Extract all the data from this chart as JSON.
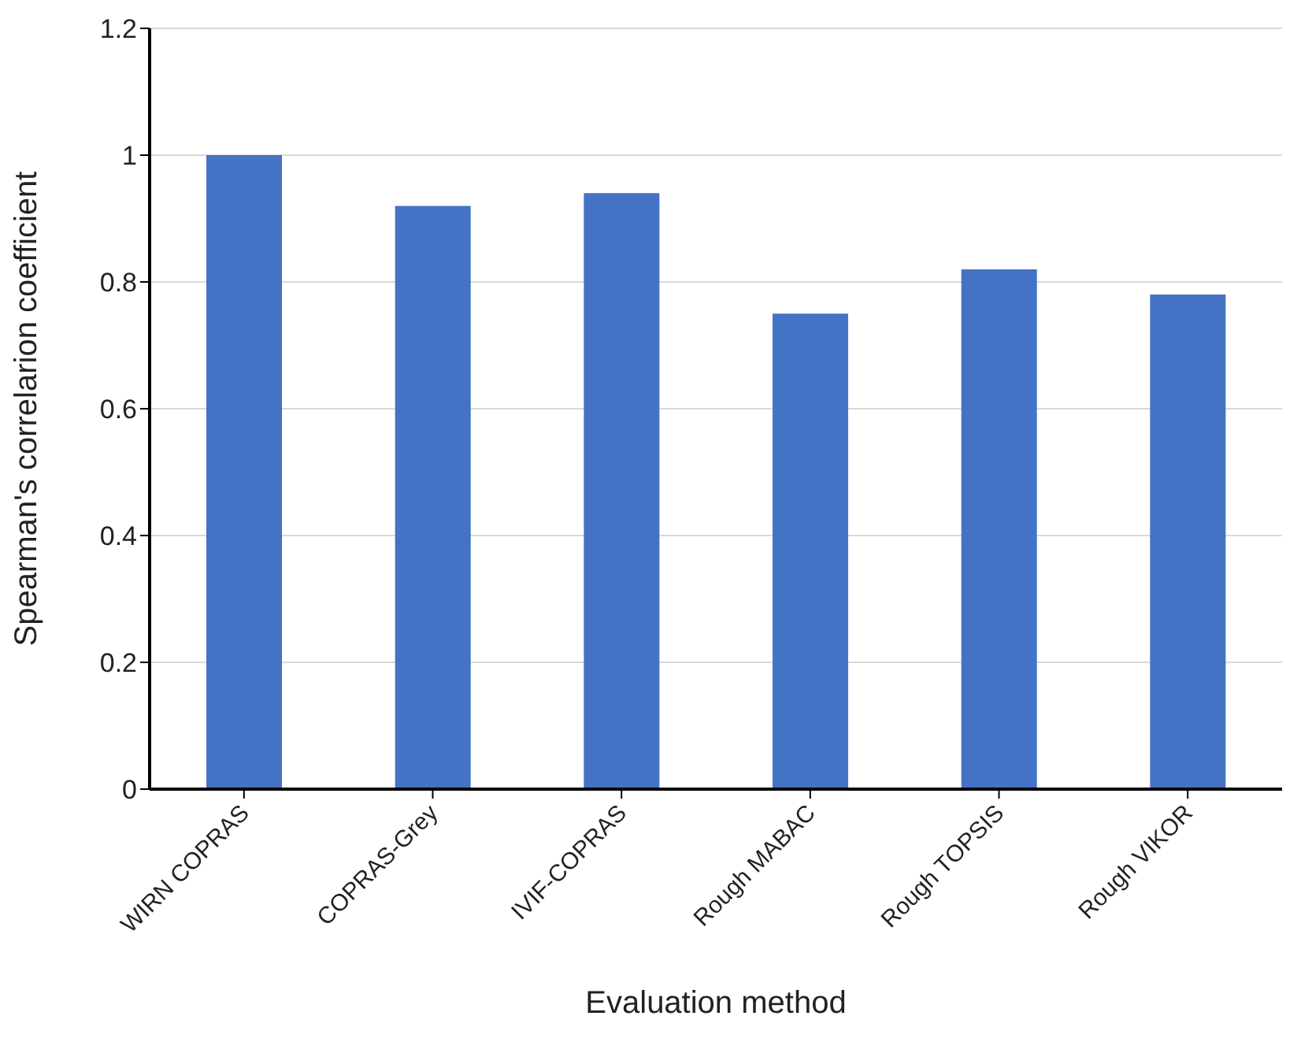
{
  "chart_data": {
    "type": "bar",
    "xlabel": "Evaluation method",
    "ylabel": "Spearman's correlarion coefficient",
    "categories": [
      "WIRN COPRAS",
      "COPRAS-Grey",
      "IVIF-COPRAS",
      "Rough MABAC",
      "Rough TOPSIS",
      "Rough VIKOR"
    ],
    "values": [
      1,
      0.92,
      0.94,
      0.75,
      0.82,
      0.78
    ],
    "color": "#4472c4",
    "ylim": [
      0,
      1.2
    ],
    "yticks": [
      0,
      0.2,
      0.4,
      0.6,
      0.8,
      1,
      1.2
    ],
    "grid": "y"
  }
}
